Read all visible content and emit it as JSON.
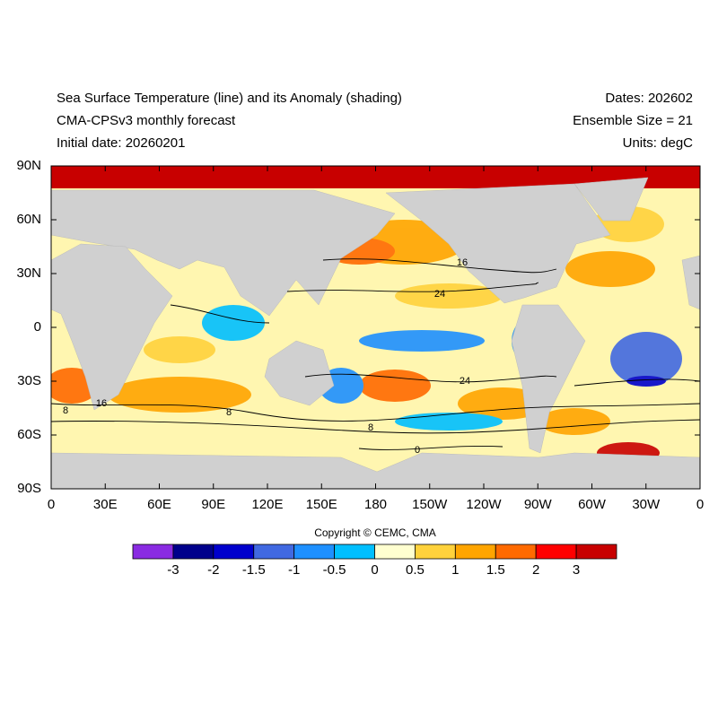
{
  "header": {
    "left": [
      "Sea Surface Temperature (line) and its Anomaly (shading)",
      "CMA-CPSv3 monthly forecast",
      "Initial date: 20260201"
    ],
    "right": [
      "Dates: 202602",
      "Ensemble Size = 21",
      "Units: degC"
    ]
  },
  "map": {
    "lat_labels": [
      "90N",
      "60N",
      "30N",
      "0",
      "30S",
      "60S",
      "90S"
    ],
    "lon_labels": [
      "0",
      "30E",
      "60E",
      "90E",
      "120E",
      "150E",
      "180",
      "150W",
      "120W",
      "90W",
      "60W",
      "30W",
      "0"
    ],
    "contour_labels": [
      "16",
      "24",
      "24",
      "16",
      "8",
      "8",
      "8",
      "0"
    ]
  },
  "copyright": "Copyright © CEMC, CMA",
  "colorbar": {
    "labels": [
      "-3",
      "-2",
      "-1.5",
      "-1",
      "-0.5",
      "0",
      "0.5",
      "1",
      "1.5",
      "2",
      "3"
    ],
    "colors": [
      "#8a2be2",
      "#00008b",
      "#0000cd",
      "#4169e1",
      "#1e90ff",
      "#00bfff",
      "#ffffd0",
      "#ffd23c",
      "#ffa500",
      "#ff6a00",
      "#ff0000",
      "#c80000"
    ]
  }
}
